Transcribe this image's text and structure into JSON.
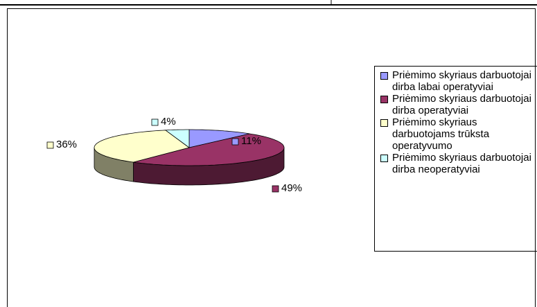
{
  "chart_data": {
    "type": "pie",
    "categories": [
      "Priėmimo skyriaus darbuotojai dirba labai operatyviai",
      "Priėmimo skyriaus darbuotojai dirba operatyviai",
      "Priėmimo skyriaus darbuotojams trūksta operatyvumo",
      "Priėmimo skyriaus darbuotojai dirba neoperatyviai"
    ],
    "values": [
      11,
      49,
      36,
      4
    ],
    "value_labels": [
      "11%",
      "49%",
      "36%",
      "4%"
    ],
    "colors": [
      "#9999ff",
      "#993366",
      "#ffffcc",
      "#ccffff"
    ],
    "legend": "right"
  }
}
